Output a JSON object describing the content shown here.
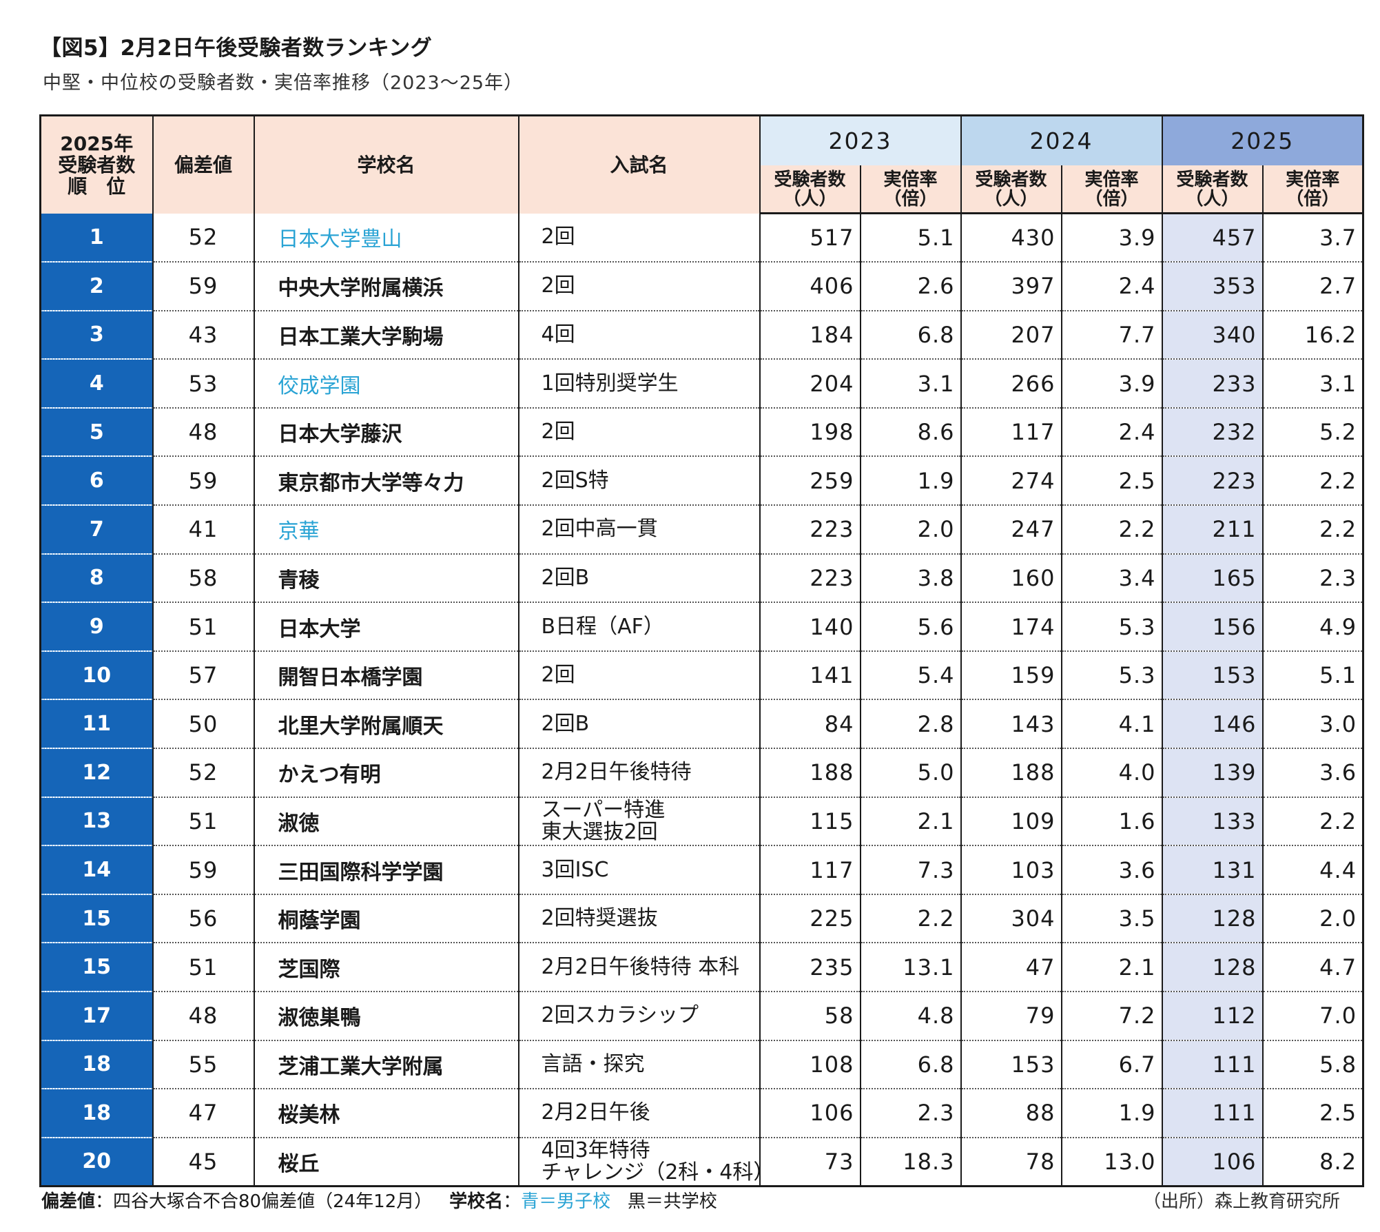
{
  "title": "【図5】2月2日午後受験者数ランキング",
  "subtitle": "中堅・中位校の受験者数・実倍率推移（2023～25年）",
  "headers": {
    "rank_line1": "2025年",
    "rank_line2": "受験者数",
    "rank_line3": "順　位",
    "deviation": "偏差値",
    "school": "学校名",
    "exam": "入試名",
    "y2023": "2023",
    "y2024": "2024",
    "y2025": "2025",
    "applicants_line1": "受験者数",
    "applicants_line2": "（人）",
    "ratio_line1": "実倍率",
    "ratio_line2": "（倍）"
  },
  "rows": [
    {
      "rank": "1",
      "dev": "52",
      "school": "日本大学豊山",
      "boys": true,
      "exam": [
        "2回"
      ],
      "a23": "517",
      "r23": "5.1",
      "a24": "430",
      "r24": "3.9",
      "a25": "457",
      "r25": "3.7"
    },
    {
      "rank": "2",
      "dev": "59",
      "school": "中央大学附属横浜",
      "boys": false,
      "exam": [
        "2回"
      ],
      "a23": "406",
      "r23": "2.6",
      "a24": "397",
      "r24": "2.4",
      "a25": "353",
      "r25": "2.7"
    },
    {
      "rank": "3",
      "dev": "43",
      "school": "日本工業大学駒場",
      "boys": false,
      "exam": [
        "4回"
      ],
      "a23": "184",
      "r23": "6.8",
      "a24": "207",
      "r24": "7.7",
      "a25": "340",
      "r25": "16.2"
    },
    {
      "rank": "4",
      "dev": "53",
      "school": "佼成学園",
      "boys": true,
      "exam": [
        "1回特別奨学生"
      ],
      "a23": "204",
      "r23": "3.1",
      "a24": "266",
      "r24": "3.9",
      "a25": "233",
      "r25": "3.1"
    },
    {
      "rank": "5",
      "dev": "48",
      "school": "日本大学藤沢",
      "boys": false,
      "exam": [
        "2回"
      ],
      "a23": "198",
      "r23": "8.6",
      "a24": "117",
      "r24": "2.4",
      "a25": "232",
      "r25": "5.2"
    },
    {
      "rank": "6",
      "dev": "59",
      "school": "東京都市大学等々力",
      "boys": false,
      "exam": [
        "2回S特"
      ],
      "a23": "259",
      "r23": "1.9",
      "a24": "274",
      "r24": "2.5",
      "a25": "223",
      "r25": "2.2"
    },
    {
      "rank": "7",
      "dev": "41",
      "school": "京華",
      "boys": true,
      "exam": [
        "2回中高一貫"
      ],
      "a23": "223",
      "r23": "2.0",
      "a24": "247",
      "r24": "2.2",
      "a25": "211",
      "r25": "2.2"
    },
    {
      "rank": "8",
      "dev": "58",
      "school": "青稜",
      "boys": false,
      "exam": [
        "2回B"
      ],
      "a23": "223",
      "r23": "3.8",
      "a24": "160",
      "r24": "3.4",
      "a25": "165",
      "r25": "2.3"
    },
    {
      "rank": "9",
      "dev": "51",
      "school": "日本大学",
      "boys": false,
      "exam": [
        "B日程（AF）"
      ],
      "a23": "140",
      "r23": "5.6",
      "a24": "174",
      "r24": "5.3",
      "a25": "156",
      "r25": "4.9"
    },
    {
      "rank": "10",
      "dev": "57",
      "school": "開智日本橋学園",
      "boys": false,
      "exam": [
        "2回"
      ],
      "a23": "141",
      "r23": "5.4",
      "a24": "159",
      "r24": "5.3",
      "a25": "153",
      "r25": "5.1"
    },
    {
      "rank": "11",
      "dev": "50",
      "school": "北里大学附属順天",
      "boys": false,
      "exam": [
        "2回B"
      ],
      "a23": "84",
      "r23": "2.8",
      "a24": "143",
      "r24": "4.1",
      "a25": "146",
      "r25": "3.0"
    },
    {
      "rank": "12",
      "dev": "52",
      "school": "かえつ有明",
      "boys": false,
      "exam": [
        "2月2日午後特待"
      ],
      "a23": "188",
      "r23": "5.0",
      "a24": "188",
      "r24": "4.0",
      "a25": "139",
      "r25": "3.6"
    },
    {
      "rank": "13",
      "dev": "51",
      "school": "淑徳",
      "boys": false,
      "exam": [
        "スーパー特進",
        "東大選抜2回"
      ],
      "a23": "115",
      "r23": "2.1",
      "a24": "109",
      "r24": "1.6",
      "a25": "133",
      "r25": "2.2"
    },
    {
      "rank": "14",
      "dev": "59",
      "school": "三田国際科学学園",
      "boys": false,
      "exam": [
        "3回ISC"
      ],
      "a23": "117",
      "r23": "7.3",
      "a24": "103",
      "r24": "3.6",
      "a25": "131",
      "r25": "4.4"
    },
    {
      "rank": "15",
      "dev": "56",
      "school": "桐蔭学園",
      "boys": false,
      "exam": [
        "2回特奨選抜"
      ],
      "a23": "225",
      "r23": "2.2",
      "a24": "304",
      "r24": "3.5",
      "a25": "128",
      "r25": "2.0"
    },
    {
      "rank": "15",
      "dev": "51",
      "school": "芝国際",
      "boys": false,
      "exam": [
        "2月2日午後特待 本科"
      ],
      "a23": "235",
      "r23": "13.1",
      "a24": "47",
      "r24": "2.1",
      "a25": "128",
      "r25": "4.7"
    },
    {
      "rank": "17",
      "dev": "48",
      "school": "淑徳巣鴨",
      "boys": false,
      "exam": [
        "2回スカラシップ"
      ],
      "a23": "58",
      "r23": "4.8",
      "a24": "79",
      "r24": "7.2",
      "a25": "112",
      "r25": "7.0"
    },
    {
      "rank": "18",
      "dev": "55",
      "school": "芝浦工業大学附属",
      "boys": false,
      "exam": [
        "言語・探究"
      ],
      "a23": "108",
      "r23": "6.8",
      "a24": "153",
      "r24": "6.7",
      "a25": "111",
      "r25": "5.8"
    },
    {
      "rank": "18",
      "dev": "47",
      "school": "桜美林",
      "boys": false,
      "exam": [
        "2月2日午後"
      ],
      "a23": "106",
      "r23": "2.3",
      "a24": "88",
      "r24": "1.9",
      "a25": "111",
      "r25": "2.5"
    },
    {
      "rank": "20",
      "dev": "45",
      "school": "桜丘",
      "boys": false,
      "exam": [
        "4回3年特待",
        "チャレンジ（2科・4科）"
      ],
      "a23": "73",
      "r23": "18.3",
      "a24": "78",
      "r24": "13.0",
      "a25": "106",
      "r25": "8.2"
    }
  ],
  "footer": {
    "dev_label": "偏差値",
    "dev_note": "：四谷大塚合不合80偏差値（24年12月）",
    "school_label": "学校名",
    "school_colon": "：",
    "boys_note": "青＝男子校",
    "coed_note": "黒＝共学校",
    "source": "（出所）森上教育研究所"
  },
  "colors": {
    "header_bg": "#fbe3d7",
    "y2023_bg": "#ddebf7",
    "y2024_bg": "#bdd7ee",
    "y2025_bg": "#8ea9db",
    "rank_bg": "#1565b8",
    "col2025_bg": "#dde3f3",
    "boys_text": "#29a3d4"
  }
}
